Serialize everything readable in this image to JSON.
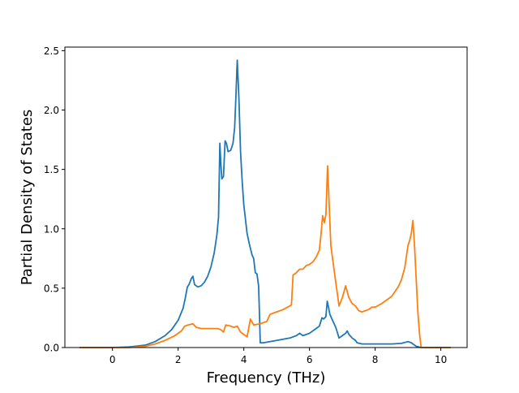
{
  "chart_data": {
    "type": "line",
    "title": "",
    "xlabel": "Frequency (THz)",
    "ylabel": "Partial Density of States",
    "xlim": [
      -1.45,
      10.8
    ],
    "ylim": [
      0,
      2.53
    ],
    "x_ticks": [
      0,
      2,
      4,
      6,
      8,
      10
    ],
    "x_tick_labels": [
      "0",
      "2",
      "4",
      "6",
      "8",
      "10"
    ],
    "y_ticks": [
      0.0,
      0.5,
      1.0,
      1.5,
      2.0,
      2.5
    ],
    "y_tick_labels": [
      "0.0",
      "0.5",
      "1.0",
      "1.5",
      "2.0",
      "2.5"
    ],
    "grid": false,
    "legend": "none",
    "series": [
      {
        "color": "#1f77b4",
        "points": [
          [
            -1.0,
            0.0
          ],
          [
            0.0,
            0.0
          ],
          [
            0.5,
            0.005
          ],
          [
            1.0,
            0.02
          ],
          [
            1.3,
            0.05
          ],
          [
            1.6,
            0.1
          ],
          [
            1.8,
            0.15
          ],
          [
            2.0,
            0.23
          ],
          [
            2.15,
            0.33
          ],
          [
            2.22,
            0.42
          ],
          [
            2.28,
            0.51
          ],
          [
            2.33,
            0.53
          ],
          [
            2.4,
            0.58
          ],
          [
            2.45,
            0.6
          ],
          [
            2.5,
            0.53
          ],
          [
            2.6,
            0.51
          ],
          [
            2.7,
            0.52
          ],
          [
            2.8,
            0.55
          ],
          [
            2.9,
            0.6
          ],
          [
            3.0,
            0.68
          ],
          [
            3.1,
            0.8
          ],
          [
            3.18,
            0.95
          ],
          [
            3.23,
            1.1
          ],
          [
            3.27,
            1.72
          ],
          [
            3.3,
            1.55
          ],
          [
            3.33,
            1.42
          ],
          [
            3.38,
            1.44
          ],
          [
            3.43,
            1.74
          ],
          [
            3.47,
            1.72
          ],
          [
            3.52,
            1.65
          ],
          [
            3.6,
            1.66
          ],
          [
            3.67,
            1.72
          ],
          [
            3.72,
            1.85
          ],
          [
            3.75,
            2.05
          ],
          [
            3.8,
            2.42
          ],
          [
            3.85,
            2.1
          ],
          [
            3.9,
            1.65
          ],
          [
            3.95,
            1.4
          ],
          [
            4.0,
            1.2
          ],
          [
            4.05,
            1.08
          ],
          [
            4.1,
            0.96
          ],
          [
            4.17,
            0.87
          ],
          [
            4.25,
            0.78
          ],
          [
            4.3,
            0.75
          ],
          [
            4.35,
            0.63
          ],
          [
            4.4,
            0.62
          ],
          [
            4.45,
            0.52
          ],
          [
            4.48,
            0.25
          ],
          [
            4.5,
            0.04
          ],
          [
            4.6,
            0.04
          ],
          [
            5.0,
            0.06
          ],
          [
            5.4,
            0.08
          ],
          [
            5.6,
            0.1
          ],
          [
            5.7,
            0.12
          ],
          [
            5.8,
            0.1
          ],
          [
            6.0,
            0.12
          ],
          [
            6.2,
            0.16
          ],
          [
            6.3,
            0.18
          ],
          [
            6.38,
            0.25
          ],
          [
            6.43,
            0.24
          ],
          [
            6.5,
            0.26
          ],
          [
            6.54,
            0.39
          ],
          [
            6.58,
            0.34
          ],
          [
            6.62,
            0.28
          ],
          [
            6.7,
            0.23
          ],
          [
            6.8,
            0.17
          ],
          [
            6.9,
            0.08
          ],
          [
            7.0,
            0.1
          ],
          [
            7.1,
            0.12
          ],
          [
            7.15,
            0.14
          ],
          [
            7.2,
            0.11
          ],
          [
            7.3,
            0.08
          ],
          [
            7.4,
            0.06
          ],
          [
            7.45,
            0.04
          ],
          [
            7.6,
            0.03
          ],
          [
            8.0,
            0.03
          ],
          [
            8.5,
            0.03
          ],
          [
            8.8,
            0.035
          ],
          [
            9.0,
            0.05
          ],
          [
            9.1,
            0.04
          ],
          [
            9.25,
            0.01
          ],
          [
            9.4,
            0.0
          ],
          [
            10.3,
            0.0
          ]
        ]
      },
      {
        "color": "#ff7f0e",
        "points": [
          [
            -1.0,
            0.0
          ],
          [
            0.0,
            0.0
          ],
          [
            0.5,
            0.0
          ],
          [
            1.0,
            0.01
          ],
          [
            1.3,
            0.03
          ],
          [
            1.6,
            0.06
          ],
          [
            1.9,
            0.1
          ],
          [
            2.1,
            0.14
          ],
          [
            2.2,
            0.18
          ],
          [
            2.3,
            0.19
          ],
          [
            2.45,
            0.2
          ],
          [
            2.55,
            0.17
          ],
          [
            2.7,
            0.16
          ],
          [
            2.8,
            0.16
          ],
          [
            3.0,
            0.16
          ],
          [
            3.2,
            0.16
          ],
          [
            3.3,
            0.15
          ],
          [
            3.38,
            0.13
          ],
          [
            3.45,
            0.19
          ],
          [
            3.6,
            0.18
          ],
          [
            3.7,
            0.17
          ],
          [
            3.8,
            0.18
          ],
          [
            3.9,
            0.13
          ],
          [
            4.0,
            0.11
          ],
          [
            4.1,
            0.09
          ],
          [
            4.2,
            0.24
          ],
          [
            4.3,
            0.19
          ],
          [
            4.5,
            0.2
          ],
          [
            4.6,
            0.21
          ],
          [
            4.7,
            0.22
          ],
          [
            4.8,
            0.28
          ],
          [
            5.0,
            0.3
          ],
          [
            5.2,
            0.32
          ],
          [
            5.4,
            0.35
          ],
          [
            5.45,
            0.36
          ],
          [
            5.5,
            0.61
          ],
          [
            5.6,
            0.63
          ],
          [
            5.7,
            0.66
          ],
          [
            5.8,
            0.66
          ],
          [
            5.9,
            0.69
          ],
          [
            6.0,
            0.7
          ],
          [
            6.1,
            0.72
          ],
          [
            6.2,
            0.76
          ],
          [
            6.3,
            0.82
          ],
          [
            6.35,
            0.95
          ],
          [
            6.4,
            1.11
          ],
          [
            6.45,
            1.05
          ],
          [
            6.5,
            1.12
          ],
          [
            6.55,
            1.53
          ],
          [
            6.6,
            1.2
          ],
          [
            6.65,
            0.86
          ],
          [
            6.75,
            0.65
          ],
          [
            6.8,
            0.55
          ],
          [
            6.85,
            0.45
          ],
          [
            6.9,
            0.35
          ],
          [
            7.0,
            0.42
          ],
          [
            7.1,
            0.52
          ],
          [
            7.2,
            0.42
          ],
          [
            7.3,
            0.37
          ],
          [
            7.4,
            0.35
          ],
          [
            7.5,
            0.31
          ],
          [
            7.6,
            0.3
          ],
          [
            7.7,
            0.31
          ],
          [
            7.8,
            0.32
          ],
          [
            7.9,
            0.34
          ],
          [
            8.0,
            0.34
          ],
          [
            8.2,
            0.37
          ],
          [
            8.5,
            0.43
          ],
          [
            8.7,
            0.51
          ],
          [
            8.8,
            0.57
          ],
          [
            8.9,
            0.67
          ],
          [
            9.0,
            0.86
          ],
          [
            9.05,
            0.9
          ],
          [
            9.1,
            0.96
          ],
          [
            9.15,
            1.07
          ],
          [
            9.2,
            0.85
          ],
          [
            9.3,
            0.3
          ],
          [
            9.35,
            0.12
          ],
          [
            9.4,
            0.0
          ],
          [
            10.3,
            0.0
          ]
        ]
      }
    ]
  }
}
